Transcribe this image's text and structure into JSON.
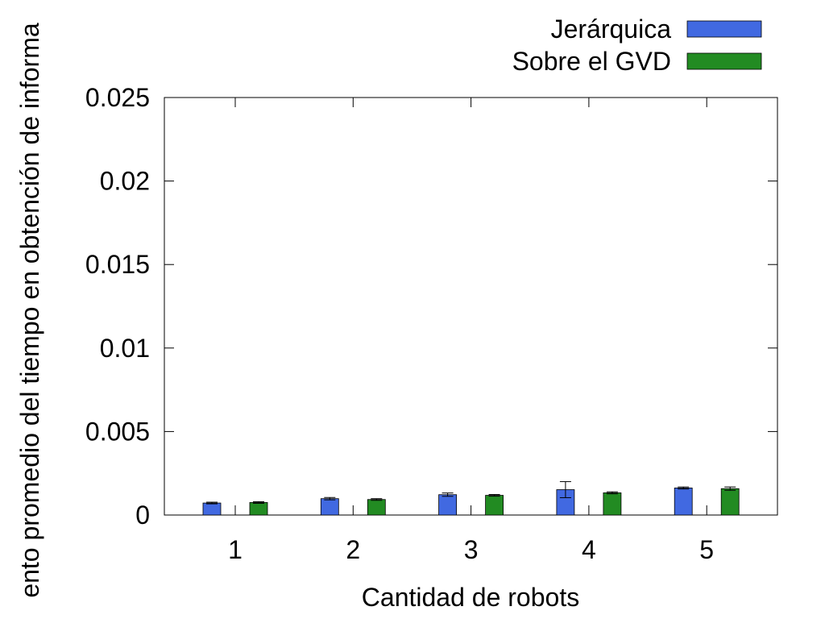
{
  "chart_data": {
    "type": "bar",
    "title": "",
    "xlabel": "Cantidad de robots",
    "ylabel": "ento promedio del tiempo en obtención de informa",
    "categories": [
      "1",
      "2",
      "3",
      "4",
      "5"
    ],
    "ylim": [
      0,
      0.025
    ],
    "yticks": [
      "0",
      "0.005",
      "0.01",
      "0.015",
      "0.02",
      "0.025"
    ],
    "legend_position": "top-right",
    "grid": false,
    "series": [
      {
        "name": "Jerárquica",
        "color": "#4169E1",
        "values": [
          0.00072,
          0.00098,
          0.00122,
          0.00152,
          0.00162
        ],
        "errors": [
          5e-05,
          7e-05,
          0.0001,
          0.00048,
          6e-05
        ]
      },
      {
        "name": "Sobre el GVD",
        "color": "#228B22",
        "values": [
          0.00075,
          0.00093,
          0.00118,
          0.00133,
          0.00158
        ],
        "errors": [
          5e-05,
          5e-05,
          5e-05,
          6e-05,
          0.0001
        ]
      }
    ]
  }
}
